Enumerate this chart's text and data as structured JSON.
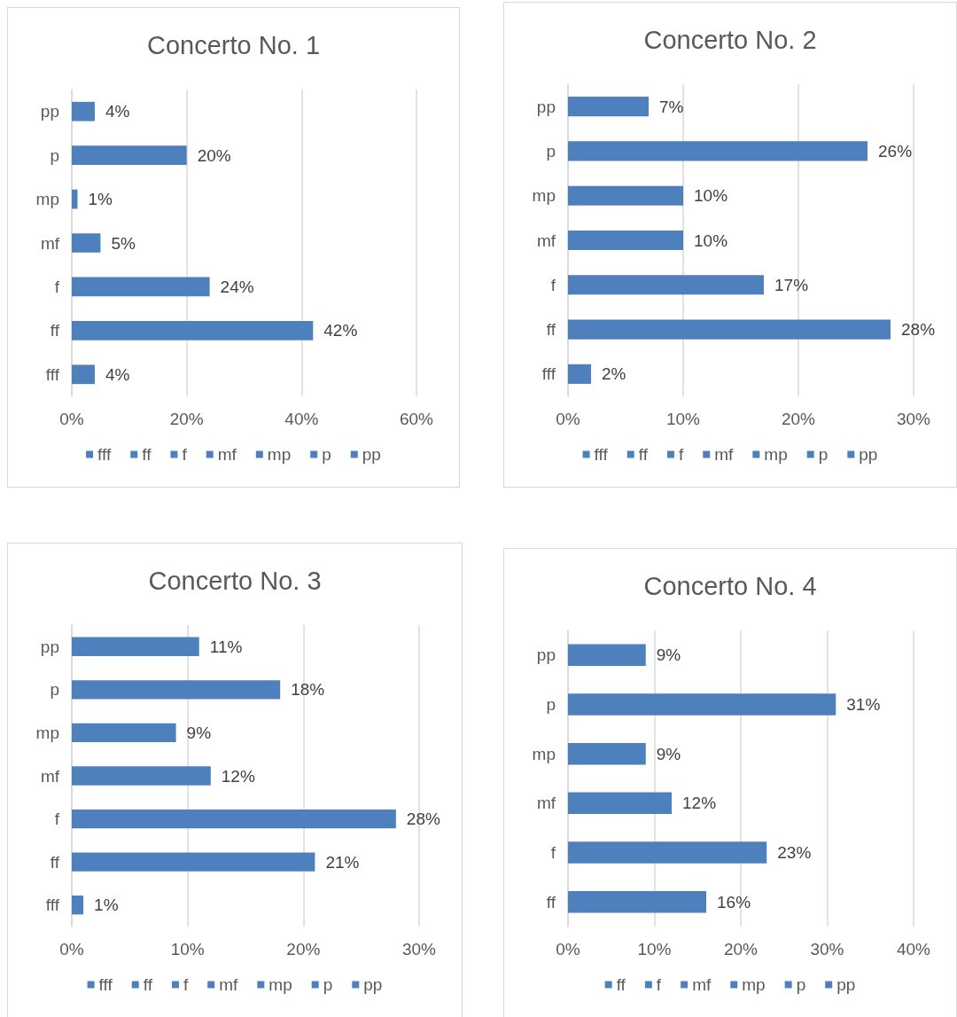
{
  "chart_data": [
    {
      "type": "bar",
      "title": "Concerto No. 1",
      "orientation": "horizontal",
      "stacked": true,
      "grid": "x",
      "legend": "bottom",
      "categories": [
        "pp",
        "p",
        "mp",
        "mf",
        "f",
        "ff",
        "fff"
      ],
      "xlim": [
        0,
        60
      ],
      "xticks": [
        {
          "value": 0,
          "label": "0%"
        },
        {
          "value": 20,
          "label": "20%"
        },
        {
          "value": 40,
          "label": "40%"
        },
        {
          "value": 60,
          "label": "60%"
        }
      ],
      "series": [
        {
          "name": "fff",
          "color": "#4e80bd",
          "values": [
            null,
            null,
            null,
            null,
            null,
            null,
            4
          ],
          "value_labels": [
            null,
            null,
            null,
            null,
            null,
            null,
            "4%"
          ]
        },
        {
          "name": "ff",
          "color": "#4e80bd",
          "values": [
            null,
            null,
            null,
            null,
            null,
            42,
            null
          ],
          "value_labels": [
            null,
            null,
            null,
            null,
            null,
            "42%",
            null
          ]
        },
        {
          "name": "f",
          "color": "#4e80bd",
          "values": [
            null,
            null,
            null,
            null,
            24,
            null,
            null
          ],
          "value_labels": [
            null,
            null,
            null,
            null,
            "24%",
            null,
            null
          ]
        },
        {
          "name": "mf",
          "color": "#4e80bd",
          "values": [
            null,
            null,
            null,
            5,
            null,
            null,
            null
          ],
          "value_labels": [
            null,
            null,
            null,
            "5%",
            null,
            null,
            null
          ]
        },
        {
          "name": "mp",
          "color": "#4e80bd",
          "values": [
            null,
            null,
            1,
            null,
            null,
            null,
            null
          ],
          "value_labels": [
            null,
            null,
            "1%",
            null,
            null,
            null,
            null
          ]
        },
        {
          "name": "p",
          "color": "#4e80bd",
          "values": [
            null,
            20,
            null,
            null,
            null,
            null,
            null
          ],
          "value_labels": [
            null,
            "20%",
            null,
            null,
            null,
            null,
            null
          ]
        },
        {
          "name": "pp",
          "color": "#4e80bd",
          "values": [
            4,
            null,
            null,
            null,
            null,
            null,
            null
          ],
          "value_labels": [
            "4%",
            null,
            null,
            null,
            null,
            null,
            null
          ]
        }
      ]
    },
    {
      "type": "bar",
      "title": "Concerto No. 2",
      "orientation": "horizontal",
      "stacked": true,
      "grid": "x",
      "legend": "bottom",
      "categories": [
        "pp",
        "p",
        "mp",
        "mf",
        "f",
        "ff",
        "fff"
      ],
      "xlim": [
        0,
        30
      ],
      "xticks": [
        {
          "value": 0,
          "label": "0%"
        },
        {
          "value": 10,
          "label": "10%"
        },
        {
          "value": 20,
          "label": "20%"
        },
        {
          "value": 30,
          "label": "30%"
        }
      ],
      "series": [
        {
          "name": "fff",
          "color": "#4e80bd",
          "values": [
            null,
            null,
            null,
            null,
            null,
            null,
            2
          ],
          "value_labels": [
            null,
            null,
            null,
            null,
            null,
            null,
            "2%"
          ]
        },
        {
          "name": "ff",
          "color": "#4e80bd",
          "values": [
            null,
            null,
            null,
            null,
            null,
            28,
            null
          ],
          "value_labels": [
            null,
            null,
            null,
            null,
            null,
            "28%",
            null
          ]
        },
        {
          "name": "f",
          "color": "#4e80bd",
          "values": [
            null,
            null,
            null,
            null,
            17,
            null,
            null
          ],
          "value_labels": [
            null,
            null,
            null,
            null,
            "17%",
            null,
            null
          ]
        },
        {
          "name": "mf",
          "color": "#4e80bd",
          "values": [
            null,
            null,
            null,
            10,
            null,
            null,
            null
          ],
          "value_labels": [
            null,
            null,
            null,
            "10%",
            null,
            null,
            null
          ]
        },
        {
          "name": "mp",
          "color": "#4e80bd",
          "values": [
            null,
            null,
            10,
            null,
            null,
            null,
            null
          ],
          "value_labels": [
            null,
            null,
            "10%",
            null,
            null,
            null,
            null
          ]
        },
        {
          "name": "p",
          "color": "#4e80bd",
          "values": [
            null,
            26,
            null,
            null,
            null,
            null,
            null
          ],
          "value_labels": [
            null,
            "26%",
            null,
            null,
            null,
            null,
            null
          ]
        },
        {
          "name": "pp",
          "color": "#4e80bd",
          "values": [
            7,
            null,
            null,
            null,
            null,
            null,
            null
          ],
          "value_labels": [
            "7%",
            null,
            null,
            null,
            null,
            null,
            null
          ]
        }
      ]
    },
    {
      "type": "bar",
      "title": "Concerto No. 3",
      "orientation": "horizontal",
      "stacked": true,
      "grid": "x",
      "legend": "bottom",
      "categories": [
        "pp",
        "p",
        "mp",
        "mf",
        "f",
        "ff",
        "fff"
      ],
      "xlim": [
        0,
        30
      ],
      "xticks": [
        {
          "value": 0,
          "label": "0%"
        },
        {
          "value": 10,
          "label": "10%"
        },
        {
          "value": 20,
          "label": "20%"
        },
        {
          "value": 30,
          "label": "30%"
        }
      ],
      "series": [
        {
          "name": "fff",
          "color": "#4e80bd",
          "values": [
            null,
            null,
            null,
            null,
            null,
            null,
            1
          ],
          "value_labels": [
            null,
            null,
            null,
            null,
            null,
            null,
            "1%"
          ]
        },
        {
          "name": "ff",
          "color": "#4e80bd",
          "values": [
            null,
            null,
            null,
            null,
            null,
            21,
            null
          ],
          "value_labels": [
            null,
            null,
            null,
            null,
            null,
            "21%",
            null
          ]
        },
        {
          "name": "f",
          "color": "#4e80bd",
          "values": [
            null,
            null,
            null,
            null,
            28,
            null,
            null
          ],
          "value_labels": [
            null,
            null,
            null,
            null,
            "28%",
            null,
            null
          ]
        },
        {
          "name": "mf",
          "color": "#4e80bd",
          "values": [
            null,
            null,
            null,
            12,
            null,
            null,
            null
          ],
          "value_labels": [
            null,
            null,
            null,
            "12%",
            null,
            null,
            null
          ]
        },
        {
          "name": "mp",
          "color": "#4e80bd",
          "values": [
            null,
            null,
            9,
            null,
            null,
            null,
            null
          ],
          "value_labels": [
            null,
            null,
            "9%",
            null,
            null,
            null,
            null
          ]
        },
        {
          "name": "p",
          "color": "#4e80bd",
          "values": [
            null,
            18,
            null,
            null,
            null,
            null,
            null
          ],
          "value_labels": [
            null,
            "18%",
            null,
            null,
            null,
            null,
            null
          ]
        },
        {
          "name": "pp",
          "color": "#4e80bd",
          "values": [
            11,
            null,
            null,
            null,
            null,
            null,
            null
          ],
          "value_labels": [
            "11%",
            null,
            null,
            null,
            null,
            null,
            null
          ]
        }
      ]
    },
    {
      "type": "bar",
      "title": "Concerto No. 4",
      "orientation": "horizontal",
      "stacked": true,
      "grid": "x",
      "legend": "bottom",
      "categories": [
        "pp",
        "p",
        "mp",
        "mf",
        "f",
        "ff"
      ],
      "xlim": [
        0,
        40
      ],
      "xticks": [
        {
          "value": 0,
          "label": "0%"
        },
        {
          "value": 10,
          "label": "10%"
        },
        {
          "value": 20,
          "label": "20%"
        },
        {
          "value": 30,
          "label": "30%"
        },
        {
          "value": 40,
          "label": "40%"
        }
      ],
      "series": [
        {
          "name": "ff",
          "color": "#4e80bd",
          "values": [
            null,
            null,
            null,
            null,
            null,
            16
          ],
          "value_labels": [
            null,
            null,
            null,
            null,
            null,
            "16%"
          ]
        },
        {
          "name": "f",
          "color": "#4e80bd",
          "values": [
            null,
            null,
            null,
            null,
            23,
            null
          ],
          "value_labels": [
            null,
            null,
            null,
            null,
            "23%",
            null
          ]
        },
        {
          "name": "mf",
          "color": "#4e80bd",
          "values": [
            null,
            null,
            null,
            12,
            null,
            null
          ],
          "value_labels": [
            null,
            null,
            null,
            "12%",
            null,
            null
          ]
        },
        {
          "name": "mp",
          "color": "#4e80bd",
          "values": [
            null,
            null,
            9,
            null,
            null,
            null
          ],
          "value_labels": [
            null,
            null,
            "9%",
            null,
            null,
            null
          ]
        },
        {
          "name": "p",
          "color": "#4e80bd",
          "values": [
            null,
            31,
            null,
            null,
            null,
            null
          ],
          "value_labels": [
            null,
            "31%",
            null,
            null,
            null,
            null
          ]
        },
        {
          "name": "pp",
          "color": "#4e80bd",
          "values": [
            9,
            null,
            null,
            null,
            null,
            null
          ],
          "value_labels": [
            "9%",
            null,
            null,
            null,
            null,
            null
          ]
        }
      ]
    }
  ]
}
